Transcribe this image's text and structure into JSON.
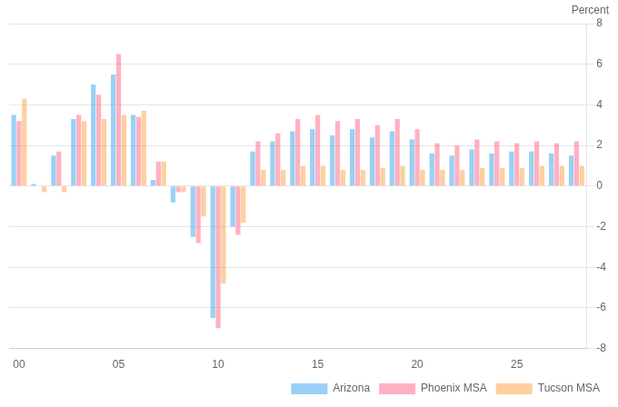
{
  "chart_data": {
    "type": "bar",
    "ylabel": "Percent",
    "categories": [
      "00",
      null,
      null,
      null,
      null,
      "05",
      null,
      null,
      null,
      null,
      "10",
      null,
      null,
      null,
      null,
      "15",
      null,
      null,
      null,
      null,
      "20",
      null,
      null,
      null,
      null,
      "25",
      null,
      null,
      null
    ],
    "series": [
      {
        "name": "Arizona",
        "values": [
          3.5,
          0.1,
          1.5,
          3.3,
          5.0,
          5.5,
          3.5,
          0.3,
          -0.8,
          -2.5,
          -6.5,
          -2.0,
          1.7,
          2.2,
          2.7,
          2.8,
          2.5,
          2.8,
          2.4,
          2.7,
          2.3,
          1.6,
          1.5,
          1.8,
          1.6,
          1.7,
          1.7,
          1.6,
          1.5
        ]
      },
      {
        "name": "Phoenix MSA",
        "values": [
          3.2,
          0.0,
          1.7,
          3.5,
          4.5,
          6.5,
          3.4,
          1.2,
          -0.3,
          -2.8,
          -7.0,
          -2.4,
          2.2,
          2.6,
          3.3,
          3.5,
          3.2,
          3.3,
          3.0,
          3.3,
          2.8,
          2.1,
          2.0,
          2.3,
          2.2,
          2.1,
          2.2,
          2.1,
          2.2
        ]
      },
      {
        "name": "Tucson MSA",
        "values": [
          4.3,
          -0.3,
          -0.3,
          3.2,
          3.3,
          3.5,
          3.7,
          1.2,
          -0.3,
          -1.5,
          -4.8,
          -1.8,
          0.8,
          0.8,
          1.0,
          1.0,
          0.8,
          0.8,
          0.9,
          1.0,
          0.8,
          0.8,
          0.8,
          0.9,
          0.9,
          0.9,
          1.0,
          1.0,
          1.0
        ]
      }
    ],
    "ylim": [
      -8,
      8
    ],
    "yticks": [
      -8,
      -6,
      -4,
      -2,
      0,
      2,
      4,
      6,
      8
    ],
    "grid": true,
    "legend": "lower right"
  }
}
